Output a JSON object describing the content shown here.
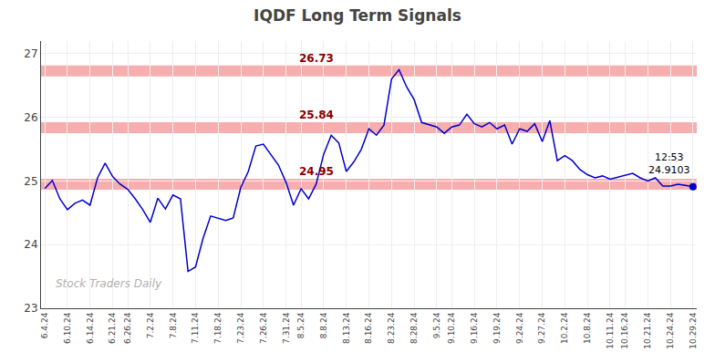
{
  "chart_data": {
    "type": "line",
    "title": "IQDF Long Term Signals",
    "categories": [
      "6.4.24",
      null,
      null,
      "6.10.24",
      null,
      null,
      "6.14.24",
      null,
      null,
      "6.21.24",
      null,
      "6.26.24",
      null,
      null,
      "7.2.24",
      null,
      null,
      "7.8.24",
      null,
      null,
      "7.11.24",
      null,
      null,
      "7.18.24",
      null,
      null,
      "7.23.24",
      null,
      null,
      "7.26.24",
      null,
      null,
      "7.31.24",
      null,
      "8.5.24",
      null,
      null,
      "8.8.24",
      null,
      null,
      "8.13.24",
      null,
      null,
      "8.16.24",
      null,
      null,
      "8.23.24",
      null,
      null,
      "8.28.24",
      null,
      null,
      "9.5.24",
      null,
      "9.10.24",
      null,
      null,
      "9.16.24",
      null,
      null,
      "9.19.24",
      null,
      null,
      "9.24.24",
      null,
      null,
      "9.27.24",
      null,
      null,
      "10.2.24",
      null,
      null,
      "10.8.24",
      null,
      null,
      "10.11.24",
      null,
      "10.16.24",
      null,
      null,
      "10.21.24",
      null,
      null,
      "10.24.24",
      null,
      null,
      "10.29.24"
    ],
    "values": [
      24.88,
      25.01,
      24.72,
      24.55,
      24.65,
      24.7,
      24.62,
      25.05,
      25.28,
      25.07,
      24.95,
      24.87,
      24.72,
      24.55,
      24.35,
      24.73,
      24.56,
      24.78,
      24.72,
      23.58,
      23.65,
      24.1,
      24.45,
      24.42,
      24.38,
      24.42,
      24.9,
      25.15,
      25.55,
      25.58,
      25.42,
      25.25,
      24.98,
      24.62,
      24.88,
      24.72,
      24.95,
      25.42,
      25.72,
      25.6,
      25.15,
      25.3,
      25.5,
      25.82,
      25.72,
      25.88,
      26.6,
      26.75,
      26.48,
      26.28,
      25.92,
      25.88,
      25.85,
      25.75,
      25.85,
      25.88,
      26.05,
      25.9,
      25.85,
      25.92,
      25.82,
      25.88,
      25.58,
      25.82,
      25.78,
      25.9,
      25.62,
      25.95,
      25.32,
      25.4,
      25.32,
      25.18,
      25.1,
      25.05,
      25.08,
      25.03,
      25.06,
      25.08,
      25.12,
      25.05,
      25.0,
      25.05,
      24.92,
      24.92,
      24.95,
      24.93,
      24.91
    ],
    "color": "#0000cc",
    "hlines": [
      {
        "value": 26.73,
        "label": "26.73"
      },
      {
        "value": 25.84,
        "label": "25.84"
      },
      {
        "value": 24.95,
        "label": "24.95"
      }
    ],
    "hline_color": "#f5a0a0",
    "hline_label_color": "#8b0000",
    "annotations": [
      {
        "text": "12:53\n24.9103"
      }
    ],
    "watermark": "Stock Traders Daily",
    "ylim": [
      23.0,
      27.2
    ],
    "yticks": [
      23,
      24,
      25,
      26,
      27
    ],
    "grid": true
  }
}
